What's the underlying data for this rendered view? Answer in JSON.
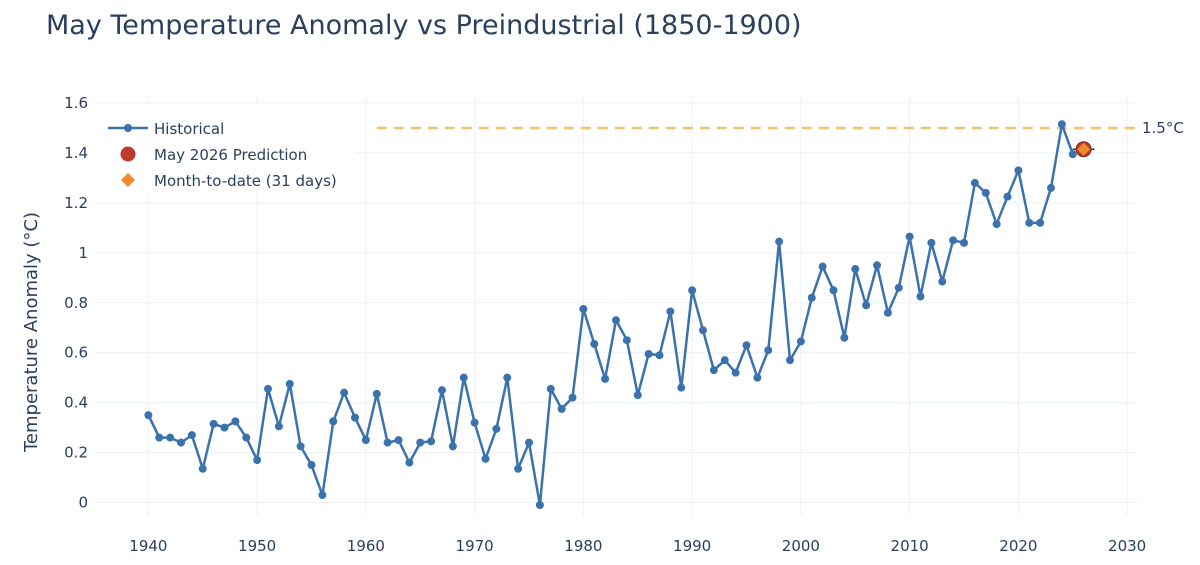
{
  "chart_data": {
    "type": "line",
    "title": "May Temperature Anomaly vs Preindustrial (1850-1900)",
    "xlabel": "",
    "ylabel": "Temperature Anomaly (°C)",
    "xlim": [
      1935,
      2031
    ],
    "ylim": [
      -0.05,
      1.62
    ],
    "x_ticks": [
      1940,
      1950,
      1960,
      1970,
      1980,
      1990,
      2000,
      2010,
      2020,
      2030
    ],
    "y_ticks": [
      0,
      0.2,
      0.4,
      0.6,
      0.8,
      1,
      1.2,
      1.4,
      1.6
    ],
    "y_tick_labels": [
      "0",
      "0.2",
      "0.4",
      "0.6",
      "0.8",
      "1",
      "1.2",
      "1.4",
      "1.6"
    ],
    "grid": true,
    "legend_position": "top-left",
    "colors": {
      "historical": "#3b72ad",
      "prediction": "#c0392b",
      "month_to_date": "#ef8a2e",
      "threshold": "#f2c26e",
      "grid": "#ebf0f8"
    },
    "series": [
      {
        "name": "Historical",
        "marker": "line+markers",
        "x": [
          1940,
          1941,
          1942,
          1943,
          1944,
          1945,
          1946,
          1947,
          1948,
          1949,
          1950,
          1951,
          1952,
          1953,
          1954,
          1955,
          1956,
          1957,
          1958,
          1959,
          1960,
          1961,
          1962,
          1963,
          1964,
          1965,
          1966,
          1967,
          1968,
          1969,
          1970,
          1971,
          1972,
          1973,
          1974,
          1975,
          1976,
          1977,
          1978,
          1979,
          1980,
          1981,
          1982,
          1983,
          1984,
          1985,
          1986,
          1987,
          1988,
          1989,
          1990,
          1991,
          1992,
          1993,
          1994,
          1995,
          1996,
          1997,
          1998,
          1999,
          2000,
          2001,
          2002,
          2003,
          2004,
          2005,
          2006,
          2007,
          2008,
          2009,
          2010,
          2011,
          2012,
          2013,
          2014,
          2015,
          2016,
          2017,
          2018,
          2019,
          2020,
          2021,
          2022,
          2023,
          2024,
          2025
        ],
        "y": [
          0.35,
          0.26,
          0.26,
          0.24,
          0.27,
          0.135,
          0.315,
          0.3,
          0.325,
          0.26,
          0.17,
          0.455,
          0.305,
          0.475,
          0.225,
          0.15,
          0.03,
          0.325,
          0.44,
          0.34,
          0.25,
          0.435,
          0.24,
          0.25,
          0.16,
          0.24,
          0.245,
          0.45,
          0.225,
          0.5,
          0.32,
          0.175,
          0.295,
          0.5,
          0.135,
          0.24,
          -0.01,
          0.455,
          0.375,
          0.42,
          0.775,
          0.635,
          0.495,
          0.73,
          0.65,
          0.43,
          0.595,
          0.59,
          0.765,
          0.46,
          0.85,
          0.69,
          0.53,
          0.57,
          0.52,
          0.63,
          0.5,
          0.61,
          1.045,
          0.57,
          0.645,
          0.82,
          0.945,
          0.85,
          0.66,
          0.935,
          0.79,
          0.95,
          0.76,
          0.86,
          1.065,
          0.825,
          1.04,
          0.885,
          1.05,
          1.04,
          1.28,
          1.24,
          1.115,
          1.225,
          1.33,
          1.12,
          1.12,
          1.26,
          1.515,
          1.395
        ]
      },
      {
        "name": "May 2026 Prediction",
        "marker": "circle",
        "x": [
          2026
        ],
        "y": [
          1.415
        ],
        "error_x": 1
      },
      {
        "name": "Month-to-date (31 days)",
        "marker": "diamond",
        "x": [
          2026
        ],
        "y": [
          1.415
        ]
      }
    ],
    "threshold": {
      "y": 1.5,
      "x_start": 1961,
      "label": "1.5°C"
    }
  }
}
